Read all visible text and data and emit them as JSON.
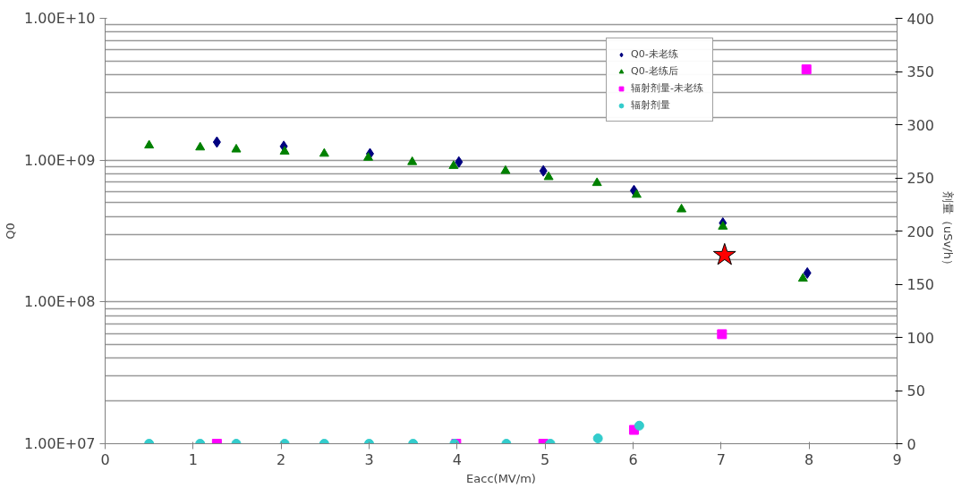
{
  "chart_data": {
    "type": "scatter",
    "xlabel": "Eacc(MV/m)",
    "ylabel": "Q0",
    "y2label": "剂量（uSv/h）",
    "log": "y",
    "grid": "y",
    "legend": "top right",
    "xlim": [
      0,
      9
    ],
    "xticks": [
      0,
      1,
      2,
      3,
      4,
      5,
      6,
      7,
      8,
      9
    ],
    "ylim": [
      10000000,
      10000000000
    ],
    "yticks": [
      {
        "value": 10000000,
        "label": "1.00E+07"
      },
      {
        "value": 100000000,
        "label": "1.00E+08"
      },
      {
        "value": 1000000000,
        "label": "1.00E+09"
      },
      {
        "value": 10000000000,
        "label": "1.00E+10"
      }
    ],
    "y2lim": [
      0,
      400
    ],
    "y2ticks": [
      0,
      50,
      100,
      150,
      200,
      250,
      300,
      350,
      400
    ],
    "series": [
      {
        "name": "Q0-未老练",
        "color": "#000080",
        "marker": "diamond",
        "x": [
          1.27,
          2.03,
          3.01,
          4.02,
          4.98,
          6.01,
          7.02,
          7.98
        ],
        "values": [
          1340000000,
          1250000000,
          1110000000,
          970000000,
          840000000,
          610000000,
          360000000,
          160000000
        ]
      },
      {
        "name": "Q0-老练后",
        "color": "#008000",
        "marker": "triangle",
        "x": [
          0.5,
          1.08,
          1.49,
          2.04,
          2.49,
          2.99,
          3.49,
          3.96,
          4.55,
          5.04,
          5.59,
          6.04,
          6.55,
          7.02,
          7.93
        ],
        "values": [
          1270000000,
          1230000000,
          1190000000,
          1150000000,
          1110000000,
          1040000000,
          970000000,
          910000000,
          840000000,
          760000000,
          690000000,
          570000000,
          450000000,
          340000000,
          146000000
        ]
      },
      {
        "name": "辐射剂量-未老练",
        "color": "#ff00ff",
        "marker": "square",
        "axis": "y2",
        "x": [
          1.27,
          3.99,
          4.98,
          6.01,
          7.01,
          7.97
        ],
        "values": [
          0,
          0,
          0,
          13,
          103,
          352
        ]
      },
      {
        "name": "辐射剂量",
        "color": "#33cccc",
        "marker": "circle",
        "axis": "y2",
        "x": [
          0.5,
          1.08,
          1.49,
          2.04,
          2.49,
          3.0,
          3.5,
          3.97,
          4.56,
          5.06,
          5.6,
          6.07
        ],
        "values": [
          0,
          0,
          0,
          0,
          0,
          0,
          0,
          0,
          0,
          0,
          5,
          17
        ]
      },
      {
        "color": "#ff0000",
        "marker": "star",
        "x": [
          7.04
        ],
        "values": [
          214000000
        ]
      }
    ]
  }
}
